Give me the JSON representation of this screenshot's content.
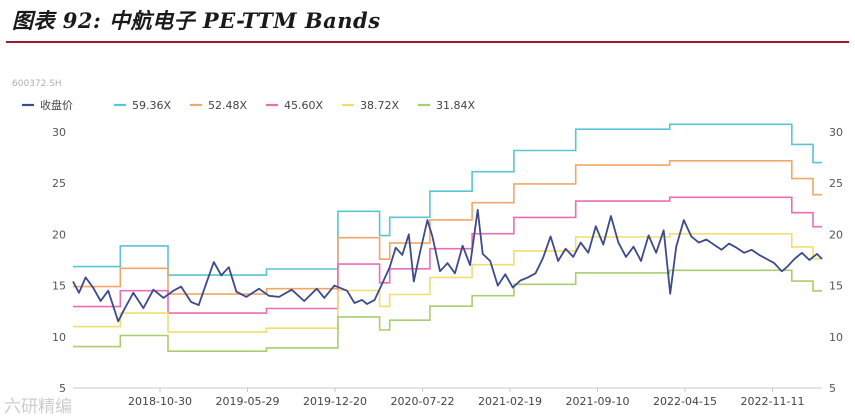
{
  "header": {
    "title": "图表 92: 中航电子 PE-TTM Bands"
  },
  "ticker": "600372.SH",
  "watermark": "六研精编",
  "chart_data": {
    "type": "line",
    "legend": [
      "收盘价",
      "59.36X",
      "52.48X",
      "45.60X",
      "38.72X",
      "31.84X"
    ],
    "legend_position": "top-left",
    "colors": [
      "#3d4a8c",
      "#5bc4d6",
      "#f2a766",
      "#e86fb4",
      "#f2dd6e",
      "#a9cf6d"
    ],
    "x_tick_labels": [
      "2018-10-30",
      "2019-05-29",
      "2019-12-20",
      "2020-07-22",
      "2021-02-19",
      "2021-09-10",
      "2022-04-15",
      "2022-11-11"
    ],
    "ylim": [
      5,
      30
    ],
    "y_ticks": [
      5,
      10,
      15,
      20,
      25,
      30
    ],
    "grid": false,
    "band_multiples": [
      59.36,
      52.48,
      45.6,
      38.72,
      31.84
    ],
    "eps_steps": [
      {
        "from": 0.0,
        "to": 0.094,
        "eps": 0.284
      },
      {
        "from": 0.094,
        "to": 0.189,
        "eps": 0.318
      },
      {
        "from": 0.189,
        "to": 0.385,
        "eps": 0.27
      },
      {
        "from": 0.385,
        "to": 0.527,
        "eps": 0.28
      },
      {
        "from": 0.527,
        "to": 0.61,
        "eps": 0.375
      },
      {
        "from": 0.61,
        "to": 0.63,
        "eps": 0.335
      },
      {
        "from": 0.63,
        "to": 0.71,
        "eps": 0.365
      },
      {
        "from": 0.71,
        "to": 0.794,
        "eps": 0.408
      },
      {
        "from": 0.794,
        "to": 0.877,
        "eps": 0.44
      },
      {
        "from": 0.877,
        "to": 1.0,
        "eps": 0.475
      },
      {
        "from": 1.0,
        "to": 1.187,
        "eps": 0.51
      },
      {
        "from": 1.187,
        "to": 1.43,
        "eps": 0.518
      },
      {
        "from": 1.43,
        "to": 1.472,
        "eps": 0.485
      },
      {
        "from": 1.472,
        "to": 1.49,
        "eps": 0.455
      }
    ],
    "price_points": [
      [
        0.0,
        15.4
      ],
      [
        0.012,
        14.3
      ],
      [
        0.025,
        15.8
      ],
      [
        0.04,
        14.8
      ],
      [
        0.055,
        13.5
      ],
      [
        0.07,
        14.5
      ],
      [
        0.09,
        11.5
      ],
      [
        0.1,
        12.5
      ],
      [
        0.12,
        14.3
      ],
      [
        0.14,
        12.8
      ],
      [
        0.16,
        14.6
      ],
      [
        0.18,
        13.8
      ],
      [
        0.2,
        14.5
      ],
      [
        0.215,
        14.9
      ],
      [
        0.235,
        13.4
      ],
      [
        0.25,
        13.1
      ],
      [
        0.265,
        15.2
      ],
      [
        0.28,
        17.3
      ],
      [
        0.295,
        16.0
      ],
      [
        0.31,
        16.8
      ],
      [
        0.325,
        14.4
      ],
      [
        0.345,
        13.9
      ],
      [
        0.37,
        14.7
      ],
      [
        0.39,
        14.0
      ],
      [
        0.41,
        13.9
      ],
      [
        0.435,
        14.6
      ],
      [
        0.46,
        13.5
      ],
      [
        0.485,
        14.7
      ],
      [
        0.5,
        13.8
      ],
      [
        0.52,
        15.0
      ],
      [
        0.545,
        14.5
      ],
      [
        0.56,
        13.3
      ],
      [
        0.575,
        13.6
      ],
      [
        0.585,
        13.2
      ],
      [
        0.6,
        13.6
      ],
      [
        0.615,
        15.2
      ],
      [
        0.63,
        16.8
      ],
      [
        0.642,
        18.7
      ],
      [
        0.655,
        18.0
      ],
      [
        0.668,
        20.0
      ],
      [
        0.678,
        15.4
      ],
      [
        0.69,
        18.2
      ],
      [
        0.705,
        21.4
      ],
      [
        0.715,
        19.8
      ],
      [
        0.73,
        16.4
      ],
      [
        0.745,
        17.2
      ],
      [
        0.76,
        16.2
      ],
      [
        0.775,
        18.9
      ],
      [
        0.79,
        17.0
      ],
      [
        0.805,
        22.4
      ],
      [
        0.815,
        18.1
      ],
      [
        0.83,
        17.4
      ],
      [
        0.845,
        15.0
      ],
      [
        0.86,
        16.1
      ],
      [
        0.875,
        14.8
      ],
      [
        0.89,
        15.5
      ],
      [
        0.905,
        15.8
      ],
      [
        0.92,
        16.2
      ],
      [
        0.935,
        17.7
      ],
      [
        0.95,
        19.8
      ],
      [
        0.965,
        17.4
      ],
      [
        0.98,
        18.6
      ],
      [
        0.995,
        17.8
      ],
      [
        1.01,
        19.2
      ],
      [
        1.025,
        18.2
      ],
      [
        1.04,
        20.8
      ],
      [
        1.055,
        19.0
      ],
      [
        1.07,
        21.8
      ],
      [
        1.085,
        19.2
      ],
      [
        1.1,
        17.8
      ],
      [
        1.115,
        18.8
      ],
      [
        1.13,
        17.4
      ],
      [
        1.145,
        19.9
      ],
      [
        1.16,
        18.2
      ],
      [
        1.175,
        20.4
      ],
      [
        1.188,
        14.2
      ],
      [
        1.2,
        18.8
      ],
      [
        1.215,
        21.4
      ],
      [
        1.23,
        19.8
      ],
      [
        1.245,
        19.2
      ],
      [
        1.26,
        19.5
      ],
      [
        1.275,
        19.0
      ],
      [
        1.29,
        18.5
      ],
      [
        1.305,
        19.1
      ],
      [
        1.32,
        18.7
      ],
      [
        1.335,
        18.2
      ],
      [
        1.35,
        18.5
      ],
      [
        1.365,
        18.0
      ],
      [
        1.38,
        17.6
      ],
      [
        1.395,
        17.2
      ],
      [
        1.41,
        16.4
      ],
      [
        1.42,
        16.8
      ],
      [
        1.435,
        17.6
      ],
      [
        1.45,
        18.2
      ],
      [
        1.465,
        17.5
      ],
      [
        1.48,
        18.1
      ],
      [
        1.49,
        17.6
      ]
    ]
  }
}
